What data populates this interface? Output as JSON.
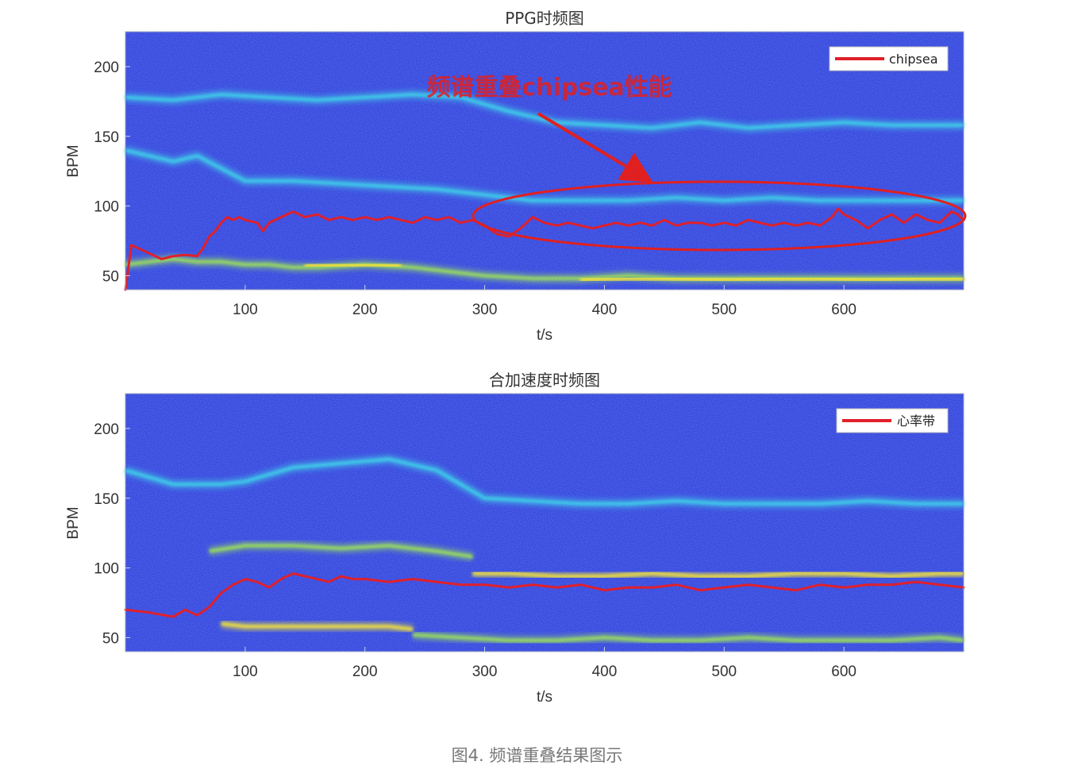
{
  "colors": {
    "background_low": "#2a2fd8",
    "background_mid": "#2f6df2",
    "band_cyan": "#3fd0e8",
    "band_green": "#9be05a",
    "band_yellow": "#f2e23a",
    "trace_red": "#e0202a",
    "annotation_red": "#e02020"
  },
  "chart_data": [
    {
      "type": "heatmap",
      "title": "PPG时频图",
      "xlabel": "t/s",
      "ylabel": "BPM",
      "xlim": [
        0,
        700
      ],
      "ylim": [
        40,
        225
      ],
      "xticks": [
        "100",
        "200",
        "300",
        "400",
        "500",
        "600"
      ],
      "yticks": [
        "50",
        "100",
        "150",
        "200"
      ],
      "grid": false,
      "legend_position": "top-right",
      "colormap": "parula",
      "series": [
        {
          "name": "chipsea",
          "color": "#e0202a",
          "x": [
            0,
            5,
            10,
            20,
            30,
            40,
            50,
            60,
            65,
            70,
            75,
            80,
            85,
            90,
            95,
            100,
            110,
            115,
            120,
            130,
            140,
            150,
            160,
            170,
            180,
            190,
            200,
            210,
            220,
            230,
            240,
            250,
            260,
            270,
            280,
            290,
            300,
            310,
            320,
            330,
            340,
            350,
            360,
            370,
            380,
            390,
            400,
            410,
            420,
            430,
            440,
            450,
            460,
            470,
            480,
            490,
            500,
            510,
            520,
            530,
            540,
            550,
            560,
            570,
            580,
            590,
            595,
            600,
            610,
            620,
            630,
            640,
            650,
            660,
            670,
            680,
            690,
            695,
            700
          ],
          "y": [
            40,
            72,
            70,
            66,
            62,
            64,
            65,
            64,
            70,
            78,
            82,
            88,
            92,
            90,
            92,
            90,
            88,
            82,
            88,
            92,
            96,
            92,
            94,
            90,
            92,
            90,
            92,
            90,
            92,
            90,
            88,
            92,
            90,
            92,
            88,
            90,
            86,
            80,
            78,
            84,
            92,
            88,
            86,
            88,
            86,
            84,
            86,
            88,
            86,
            88,
            86,
            90,
            86,
            88,
            88,
            86,
            88,
            86,
            90,
            88,
            86,
            88,
            86,
            88,
            86,
            92,
            98,
            94,
            90,
            84,
            90,
            94,
            88,
            94,
            90,
            88,
            96,
            94,
            90
          ]
        }
      ],
      "bands": [
        {
          "kind": "cyan",
          "x": [
            0,
            40,
            60,
            100,
            140,
            180,
            220,
            260,
            300,
            340,
            380,
            420,
            460,
            500,
            540,
            580,
            620,
            660,
            700
          ],
          "y": [
            140,
            132,
            136,
            118,
            118,
            116,
            114,
            112,
            108,
            104,
            104,
            104,
            106,
            104,
            106,
            104,
            104,
            104,
            104
          ]
        },
        {
          "kind": "cyan",
          "x": [
            0,
            40,
            80,
            120,
            160,
            200,
            240,
            280,
            320,
            360,
            400,
            440,
            480,
            520,
            560,
            600,
            640,
            700
          ],
          "y": [
            178,
            176,
            180,
            178,
            176,
            178,
            180,
            178,
            168,
            160,
            158,
            156,
            160,
            156,
            158,
            160,
            158,
            158
          ]
        },
        {
          "kind": "green",
          "x": [
            0,
            20,
            40,
            60,
            80,
            100,
            120,
            140,
            160,
            200,
            240,
            280,
            300,
            340,
            380,
            420,
            460,
            500,
            540,
            580,
            620,
            660,
            700
          ],
          "y": [
            58,
            60,
            62,
            60,
            60,
            58,
            58,
            56,
            56,
            58,
            56,
            52,
            50,
            48,
            48,
            50,
            48,
            48,
            48,
            48,
            48,
            48,
            48
          ]
        },
        {
          "kind": "yellow",
          "x": [
            150,
            180,
            210,
            230
          ],
          "y": [
            57,
            58,
            58,
            57
          ]
        },
        {
          "kind": "yellow",
          "x": [
            380,
            420,
            460,
            500,
            540,
            580,
            620,
            660,
            700
          ],
          "y": [
            47,
            48,
            48,
            47,
            48,
            48,
            47,
            48,
            48
          ]
        }
      ],
      "annotations": [
        {
          "text": "频谱重叠chipsea性能",
          "type": "label-with-arrow-and-ellipse"
        }
      ]
    },
    {
      "type": "heatmap",
      "title": "合加速度时频图",
      "xlabel": "t/s",
      "ylabel": "BPM",
      "xlim": [
        0,
        700
      ],
      "ylim": [
        40,
        225
      ],
      "xticks": [
        "100",
        "200",
        "300",
        "400",
        "500",
        "600"
      ],
      "yticks": [
        "50",
        "100",
        "150",
        "200"
      ],
      "grid": false,
      "legend_position": "top-right",
      "colormap": "parula",
      "series": [
        {
          "name": "心率带",
          "color": "#e0202a",
          "x": [
            0,
            20,
            40,
            50,
            60,
            70,
            80,
            90,
            100,
            110,
            120,
            130,
            140,
            150,
            160,
            170,
            180,
            190,
            200,
            220,
            240,
            260,
            280,
            300,
            320,
            340,
            360,
            380,
            400,
            420,
            440,
            460,
            480,
            500,
            520,
            540,
            560,
            580,
            600,
            620,
            640,
            660,
            680,
            700
          ],
          "y": [
            70,
            68,
            65,
            70,
            66,
            72,
            82,
            88,
            92,
            90,
            86,
            92,
            96,
            94,
            92,
            90,
            94,
            92,
            92,
            90,
            92,
            90,
            88,
            88,
            86,
            88,
            86,
            88,
            84,
            86,
            86,
            88,
            84,
            86,
            88,
            86,
            84,
            88,
            86,
            88,
            88,
            90,
            88,
            86
          ]
        }
      ],
      "bands": [
        {
          "kind": "cyan",
          "x": [
            0,
            40,
            60,
            80,
            100,
            140,
            180,
            220,
            260,
            300,
            340,
            380,
            420,
            460,
            500,
            540,
            580,
            620,
            660,
            700
          ],
          "y": [
            170,
            160,
            160,
            160,
            162,
            172,
            175,
            178,
            170,
            150,
            148,
            146,
            146,
            148,
            146,
            146,
            146,
            148,
            146,
            146
          ]
        },
        {
          "kind": "green",
          "x": [
            70,
            100,
            140,
            180,
            220,
            260,
            290
          ],
          "y": [
            112,
            116,
            116,
            114,
            116,
            112,
            108
          ]
        },
        {
          "kind": "yellow",
          "x": [
            290,
            320,
            360,
            400,
            440,
            480,
            520,
            560,
            600,
            640,
            680,
            700
          ],
          "y": [
            96,
            96,
            94,
            94,
            96,
            94,
            94,
            96,
            96,
            94,
            96,
            96
          ]
        },
        {
          "kind": "yellow",
          "x": [
            80,
            100,
            140,
            180,
            220,
            240
          ],
          "y": [
            60,
            58,
            58,
            58,
            58,
            56
          ]
        },
        {
          "kind": "green",
          "x": [
            240,
            280,
            320,
            360,
            400,
            440,
            480,
            520,
            560,
            600,
            640,
            680,
            700
          ],
          "y": [
            52,
            50,
            48,
            48,
            50,
            48,
            48,
            50,
            48,
            48,
            48,
            50,
            48
          ]
        }
      ]
    }
  ],
  "caption": "图4. 频谱重叠结果图示"
}
